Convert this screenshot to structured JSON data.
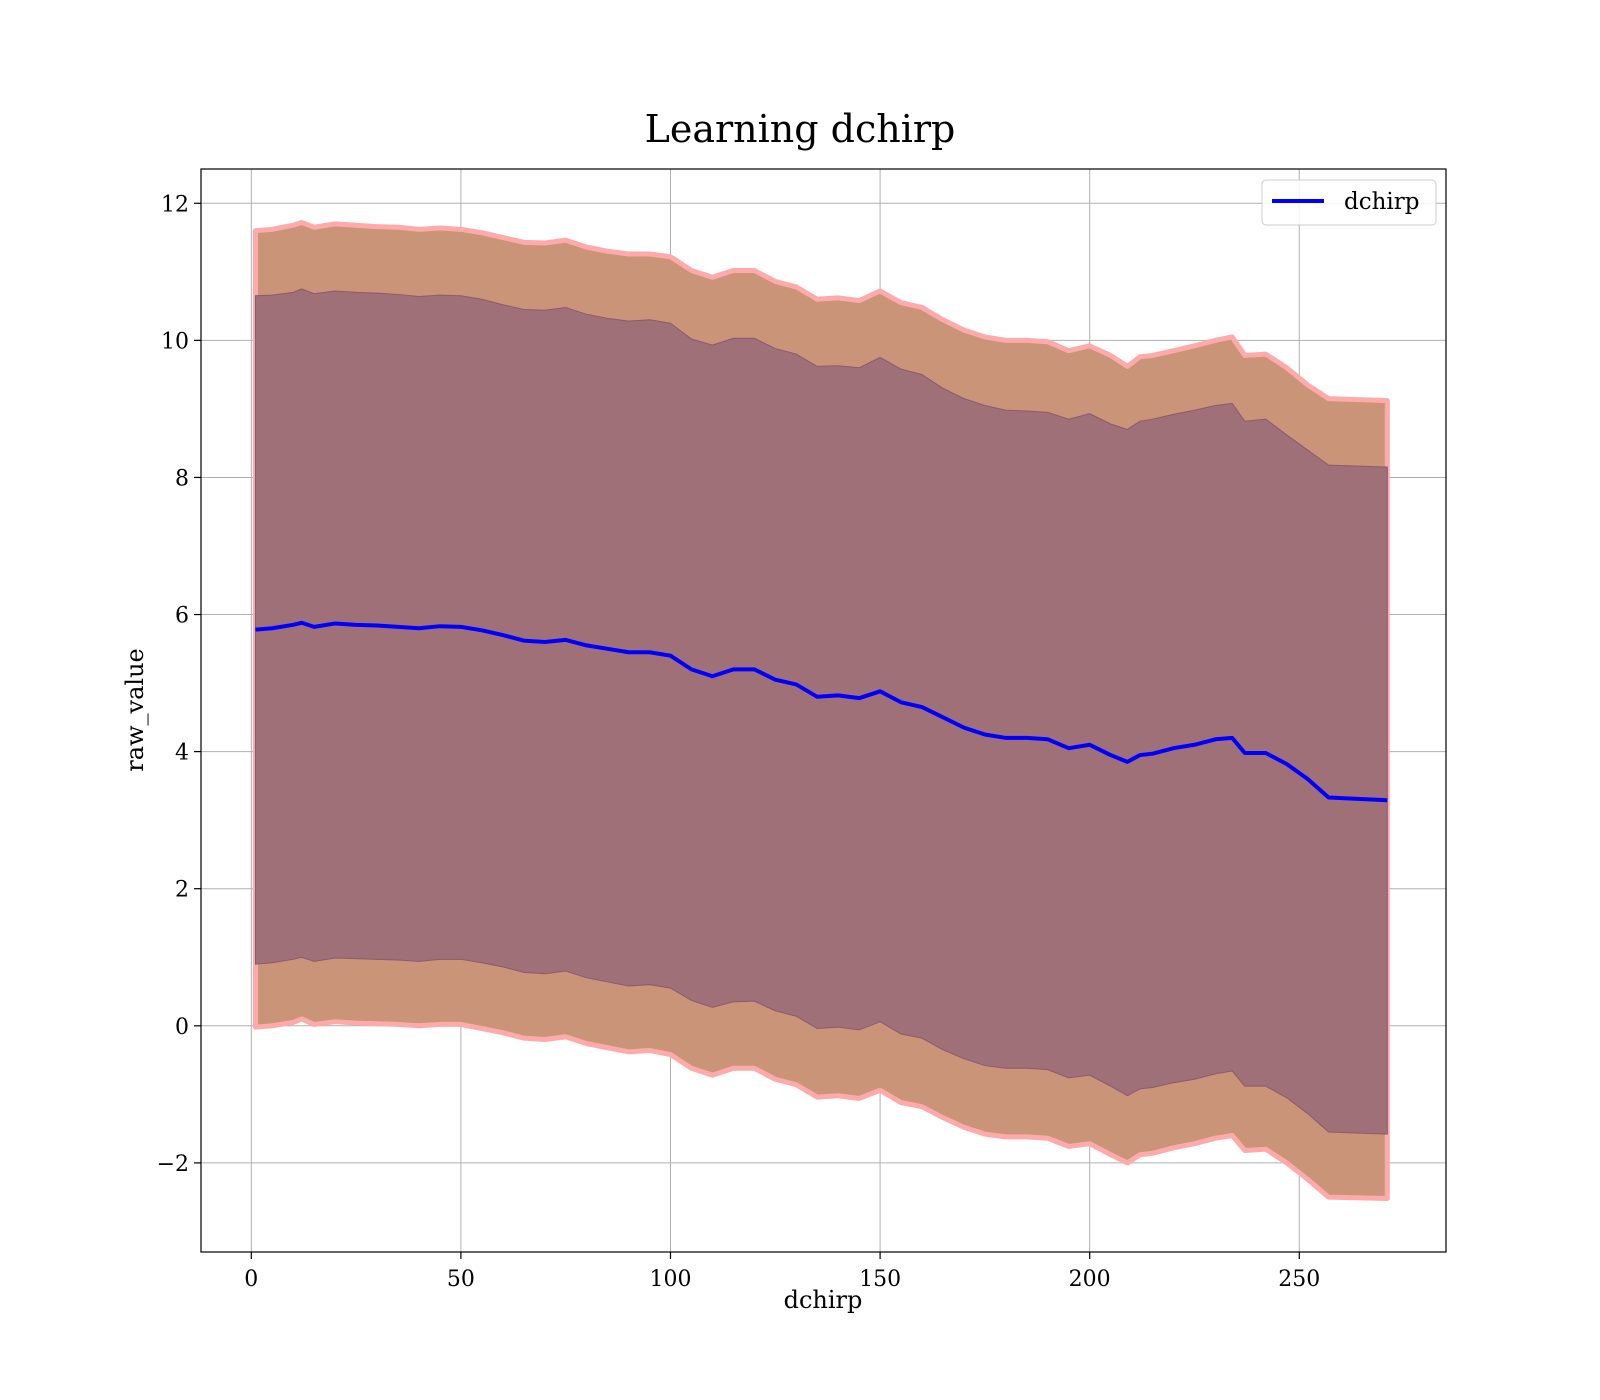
{
  "colors": {
    "mean_line": "#0000ff",
    "band_3sigma": "#c99477",
    "band_1sigma": "#a07078",
    "band_edge": "#ffaaaa",
    "grid": "#b0b0b0"
  },
  "chart_data": {
    "type": "line",
    "title": "Learning dchirp",
    "xlabel": "dchirp",
    "ylabel": "raw_value",
    "xlim": [
      -12,
      285
    ],
    "ylim": [
      -3.3,
      12.5
    ],
    "x_ticks": [
      0,
      50,
      100,
      150,
      200,
      250
    ],
    "y_ticks": [
      -2,
      0,
      2,
      4,
      6,
      8,
      10,
      12
    ],
    "x_tick_labels": [
      "0",
      "50",
      "100",
      "150",
      "200",
      "250"
    ],
    "y_tick_labels": [
      "−2",
      "0",
      "2",
      "4",
      "6",
      "8",
      "10",
      "12"
    ],
    "grid": true,
    "legend": {
      "position": "top-right",
      "entries": [
        "dchirp"
      ]
    },
    "series": [
      {
        "name": "dchirp",
        "x": [
          1,
          5,
          10,
          12,
          15,
          20,
          25,
          30,
          35,
          40,
          45,
          50,
          55,
          60,
          65,
          70,
          75,
          80,
          85,
          90,
          95,
          100,
          105,
          110,
          115,
          120,
          125,
          130,
          135,
          140,
          145,
          150,
          155,
          160,
          165,
          170,
          175,
          180,
          185,
          190,
          195,
          200,
          205,
          209,
          212,
          215,
          220,
          225,
          230,
          234,
          237,
          242,
          247,
          252,
          257,
          271
        ],
        "mean": [
          5.78,
          5.8,
          5.85,
          5.88,
          5.82,
          5.87,
          5.85,
          5.84,
          5.82,
          5.8,
          5.83,
          5.82,
          5.77,
          5.7,
          5.62,
          5.6,
          5.63,
          5.55,
          5.5,
          5.45,
          5.45,
          5.4,
          5.2,
          5.1,
          5.2,
          5.2,
          5.05,
          4.98,
          4.8,
          4.82,
          4.78,
          4.88,
          4.72,
          4.65,
          4.5,
          4.35,
          4.25,
          4.2,
          4.2,
          4.18,
          4.05,
          4.1,
          3.95,
          3.85,
          3.95,
          3.97,
          4.05,
          4.1,
          4.18,
          4.2,
          3.98,
          3.98,
          3.82,
          3.6,
          3.33,
          3.29
        ],
        "upper_3sigma": [
          11.6,
          11.62,
          11.68,
          11.72,
          11.65,
          11.7,
          11.68,
          11.66,
          11.65,
          11.62,
          11.64,
          11.62,
          11.57,
          11.5,
          11.43,
          11.42,
          11.46,
          11.36,
          11.3,
          11.26,
          11.26,
          11.22,
          11.02,
          10.92,
          11.02,
          11.02,
          10.86,
          10.78,
          10.6,
          10.62,
          10.58,
          10.72,
          10.55,
          10.48,
          10.3,
          10.15,
          10.05,
          10.0,
          10.0,
          9.98,
          9.85,
          9.92,
          9.78,
          9.62,
          9.76,
          9.78,
          9.85,
          9.92,
          10.0,
          10.05,
          9.78,
          9.8,
          9.6,
          9.35,
          9.15,
          9.12
        ],
        "upper_1sigma": [
          10.65,
          10.66,
          10.7,
          10.75,
          10.68,
          10.72,
          10.7,
          10.69,
          10.67,
          10.64,
          10.66,
          10.65,
          10.6,
          10.52,
          10.45,
          10.44,
          10.48,
          10.38,
          10.32,
          10.28,
          10.3,
          10.25,
          10.02,
          9.93,
          10.03,
          10.03,
          9.88,
          9.8,
          9.62,
          9.63,
          9.6,
          9.75,
          9.58,
          9.5,
          9.3,
          9.15,
          9.05,
          8.98,
          8.97,
          8.95,
          8.85,
          8.93,
          8.78,
          8.7,
          8.82,
          8.85,
          8.92,
          8.98,
          9.05,
          9.08,
          8.82,
          8.85,
          8.62,
          8.4,
          8.18,
          8.15
        ],
        "lower_1sigma": [
          0.9,
          0.92,
          0.97,
          1.0,
          0.94,
          0.99,
          0.98,
          0.97,
          0.96,
          0.94,
          0.97,
          0.97,
          0.92,
          0.86,
          0.78,
          0.76,
          0.8,
          0.7,
          0.64,
          0.58,
          0.6,
          0.55,
          0.37,
          0.27,
          0.35,
          0.36,
          0.22,
          0.14,
          -0.04,
          -0.02,
          -0.06,
          0.06,
          -0.12,
          -0.18,
          -0.35,
          -0.48,
          -0.58,
          -0.62,
          -0.62,
          -0.64,
          -0.76,
          -0.72,
          -0.88,
          -1.02,
          -0.92,
          -0.9,
          -0.83,
          -0.78,
          -0.7,
          -0.66,
          -0.88,
          -0.88,
          -1.05,
          -1.28,
          -1.55,
          -1.58
        ],
        "lower_3sigma": [
          -0.02,
          0.0,
          0.05,
          0.1,
          0.02,
          0.06,
          0.04,
          0.03,
          0.02,
          0.0,
          0.02,
          0.02,
          -0.04,
          -0.1,
          -0.18,
          -0.2,
          -0.16,
          -0.26,
          -0.32,
          -0.38,
          -0.36,
          -0.42,
          -0.62,
          -0.72,
          -0.62,
          -0.62,
          -0.78,
          -0.86,
          -1.04,
          -1.02,
          -1.06,
          -0.94,
          -1.12,
          -1.18,
          -1.34,
          -1.48,
          -1.58,
          -1.62,
          -1.62,
          -1.64,
          -1.76,
          -1.72,
          -1.88,
          -2.0,
          -1.88,
          -1.86,
          -1.78,
          -1.72,
          -1.64,
          -1.6,
          -1.82,
          -1.8,
          -2.0,
          -2.24,
          -2.5,
          -2.52
        ]
      }
    ]
  }
}
